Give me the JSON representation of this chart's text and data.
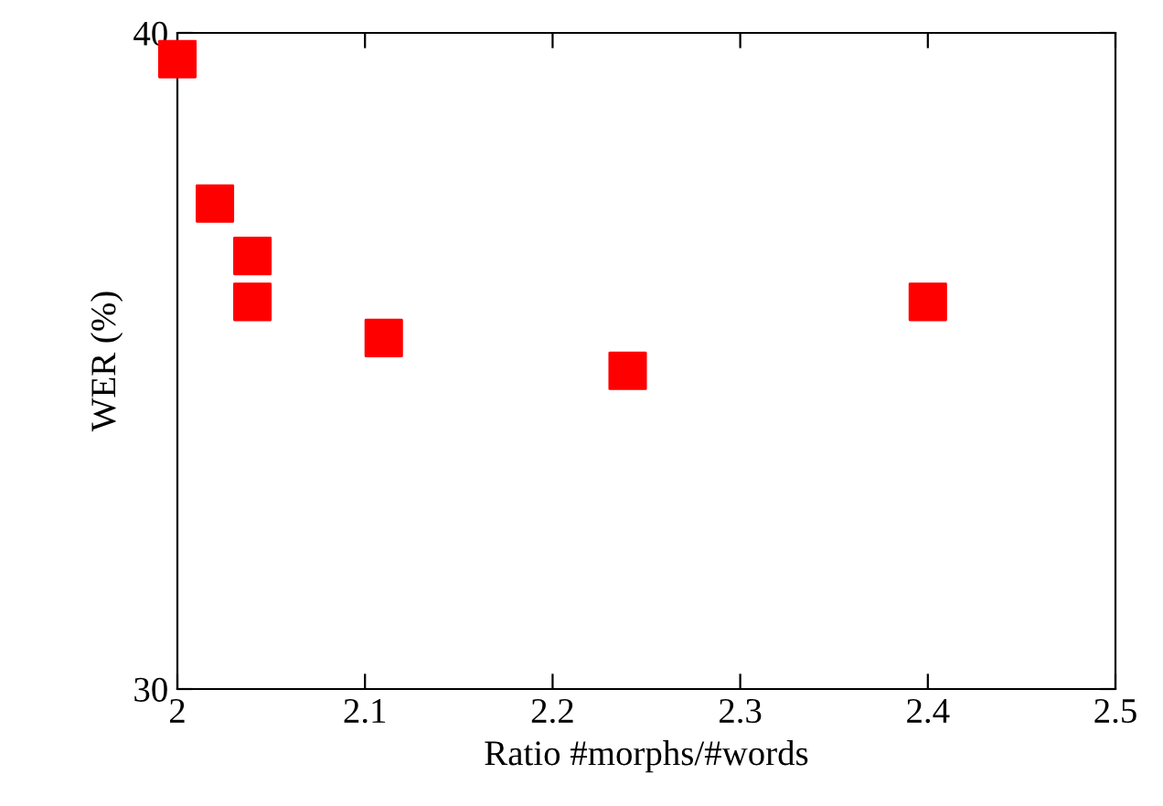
{
  "chart_data": {
    "type": "scatter",
    "xlabel": "Ratio #morphs/#words",
    "ylabel": "WER (%)",
    "x": [
      2.0,
      2.02,
      2.04,
      2.04,
      2.11,
      2.24,
      2.4
    ],
    "series": [
      {
        "color": "#ff0000",
        "values": [
          39.6,
          37.4,
          36.6,
          35.9,
          35.35,
          34.85,
          35.9
        ]
      }
    ],
    "marker": "square",
    "xlim": [
      2,
      2.5
    ],
    "ylim": [
      30,
      40
    ],
    "xticks": [
      2,
      2.1,
      2.2,
      2.3,
      2.4,
      2.5
    ],
    "yticks": [
      30,
      40
    ],
    "grid": false,
    "legend": false
  }
}
